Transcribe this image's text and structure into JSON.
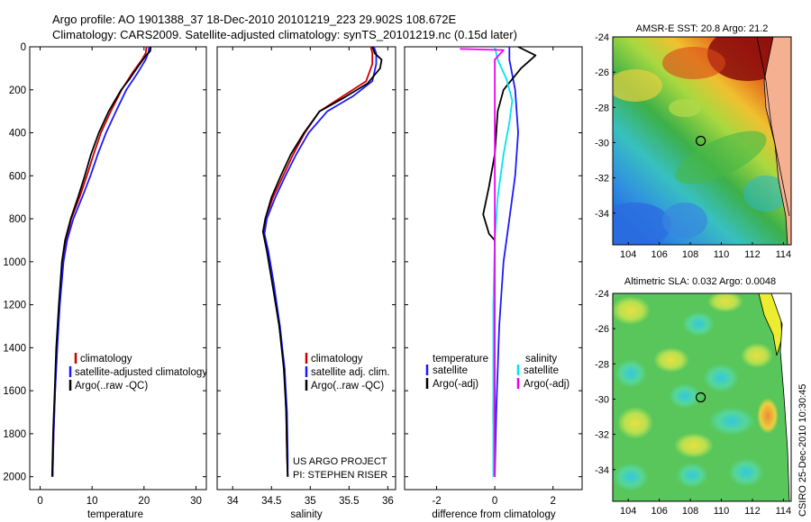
{
  "figure": {
    "title_line1": "Argo profile: AO 1901388_37 18-Dec-2010 20101219_223 29.902S 108.672E",
    "title_line2": "Climatology: CARS2009. Satellite-adjusted climatology: synTS_20101219.nc (0.15d later)",
    "project_label": "US ARGO PROJECT",
    "pi_label": "PI: STEPHEN RISER",
    "side_label": "CSIRO 25-Dec-2010 10:30:45"
  },
  "colors": {
    "climatology": "#cc0000",
    "satellite": "#1a1aff",
    "argo": "#000000",
    "cyan": "#00e5ee",
    "magenta": "#ee00ee"
  },
  "chart_data": [
    {
      "type": "line",
      "id": "temperature",
      "xlabel": "temperature",
      "xlim": [
        -2,
        32
      ],
      "ylim": [
        2060,
        0
      ],
      "x_ticks": [
        "0",
        "10",
        "20",
        "30"
      ],
      "y_ticks": [
        "0",
        "200",
        "400",
        "600",
        "800",
        "1000",
        "1200",
        "1400",
        "1600",
        "1800",
        "2000"
      ],
      "legend": [
        "climatology",
        "satellite-adjusted climatology",
        "Argo(..raw -QC)"
      ],
      "series": [
        {
          "name": "climatology",
          "color_key": "climatology",
          "points": [
            [
              20.5,
              0
            ],
            [
              20.3,
              30
            ],
            [
              19.6,
              60
            ],
            [
              17.8,
              120
            ],
            [
              15.7,
              200
            ],
            [
              13.6,
              300
            ],
            [
              11.7,
              400
            ],
            [
              10.3,
              500
            ],
            [
              9,
              600
            ],
            [
              7.6,
              700
            ],
            [
              6,
              800
            ],
            [
              5,
              900
            ],
            [
              4.3,
              1000
            ],
            [
              3.7,
              1200
            ],
            [
              3.2,
              1400
            ],
            [
              2.9,
              1600
            ],
            [
              2.6,
              1800
            ],
            [
              2.4,
              2000
            ]
          ]
        },
        {
          "name": "satellite-adjusted climatology",
          "color_key": "satellite",
          "points": [
            [
              21,
              0
            ],
            [
              20.8,
              30
            ],
            [
              20.3,
              60
            ],
            [
              18.8,
              120
            ],
            [
              16.6,
              200
            ],
            [
              14.6,
              300
            ],
            [
              12.7,
              400
            ],
            [
              11.1,
              500
            ],
            [
              9.7,
              600
            ],
            [
              8.1,
              700
            ],
            [
              6.4,
              800
            ],
            [
              5.2,
              900
            ],
            [
              4.5,
              1000
            ],
            [
              3.8,
              1200
            ],
            [
              3.3,
              1400
            ],
            [
              2.9,
              1600
            ],
            [
              2.6,
              1800
            ],
            [
              2.4,
              2000
            ]
          ]
        },
        {
          "name": "Argo(..raw -QC)",
          "color_key": "argo",
          "points": [
            [
              21.3,
              0
            ],
            [
              21.2,
              20
            ],
            [
              20.4,
              40
            ],
            [
              18.9,
              90
            ],
            [
              17.2,
              150
            ],
            [
              15.6,
              200
            ],
            [
              13.2,
              300
            ],
            [
              11.3,
              400
            ],
            [
              9.8,
              500
            ],
            [
              8.6,
              600
            ],
            [
              7.3,
              700
            ],
            [
              5.9,
              800
            ],
            [
              4.8,
              900
            ],
            [
              4.2,
              1000
            ],
            [
              3.6,
              1200
            ],
            [
              3.1,
              1400
            ],
            [
              2.8,
              1600
            ],
            [
              2.5,
              1800
            ],
            [
              2.3,
              2000
            ]
          ]
        }
      ]
    },
    {
      "type": "line",
      "id": "salinity",
      "xlabel": "salinity",
      "xlim": [
        33.8,
        36.1
      ],
      "ylim": [
        2060,
        0
      ],
      "x_ticks": [
        "34",
        "34.5",
        "35",
        "35.5",
        "36"
      ],
      "legend": [
        "climatology",
        "satellite adj. clim.",
        "Argo(..raw -QC)"
      ],
      "series": [
        {
          "name": "climatology",
          "color_key": "climatology",
          "points": [
            [
              35.78,
              0
            ],
            [
              35.8,
              30
            ],
            [
              35.8,
              80
            ],
            [
              35.72,
              160
            ],
            [
              35.42,
              230
            ],
            [
              35.12,
              300
            ],
            [
              34.93,
              400
            ],
            [
              34.78,
              500
            ],
            [
              34.65,
              600
            ],
            [
              34.52,
              700
            ],
            [
              34.42,
              800
            ],
            [
              34.4,
              870
            ],
            [
              34.45,
              950
            ],
            [
              34.52,
              1100
            ],
            [
              34.6,
              1300
            ],
            [
              34.67,
              1500
            ],
            [
              34.69,
              1700
            ],
            [
              34.7,
              1900
            ],
            [
              34.71,
              2000
            ]
          ]
        },
        {
          "name": "satellite adj. clim.",
          "color_key": "satellite",
          "points": [
            [
              35.82,
              0
            ],
            [
              35.85,
              30
            ],
            [
              35.85,
              80
            ],
            [
              35.8,
              160
            ],
            [
              35.55,
              230
            ],
            [
              35.22,
              300
            ],
            [
              34.98,
              400
            ],
            [
              34.82,
              500
            ],
            [
              34.68,
              600
            ],
            [
              34.55,
              700
            ],
            [
              34.44,
              800
            ],
            [
              34.41,
              870
            ],
            [
              34.46,
              950
            ],
            [
              34.53,
              1100
            ],
            [
              34.61,
              1300
            ],
            [
              34.67,
              1500
            ],
            [
              34.7,
              1700
            ],
            [
              34.71,
              1900
            ],
            [
              34.71,
              2000
            ]
          ]
        },
        {
          "name": "Argo(..raw -QC)",
          "color_key": "argo",
          "points": [
            [
              35.8,
              0
            ],
            [
              35.83,
              30
            ],
            [
              35.92,
              60
            ],
            [
              35.9,
              100
            ],
            [
              35.74,
              170
            ],
            [
              35.42,
              240
            ],
            [
              35.12,
              300
            ],
            [
              34.92,
              400
            ],
            [
              34.75,
              500
            ],
            [
              34.62,
              600
            ],
            [
              34.5,
              700
            ],
            [
              34.42,
              800
            ],
            [
              34.39,
              860
            ],
            [
              34.44,
              950
            ],
            [
              34.51,
              1100
            ],
            [
              34.6,
              1300
            ],
            [
              34.66,
              1500
            ],
            [
              34.69,
              1700
            ],
            [
              34.7,
              1900
            ],
            [
              34.71,
              2000
            ]
          ]
        }
      ]
    },
    {
      "type": "line",
      "id": "difference",
      "xlabel": "difference from climatology",
      "xlim": [
        -3.1,
        3
      ],
      "ylim": [
        2060,
        0
      ],
      "x_ticks": [
        "-2",
        "0",
        "2"
      ],
      "legend_left_title": "temperature",
      "legend_right_title": "salinity",
      "legend": [
        "satellite",
        "Argo(-adj)",
        "satellite",
        "Argo(-adj)"
      ],
      "series": [
        {
          "name": "satellite (temperature)",
          "color_key": "satellite",
          "points": [
            [
              0.5,
              0
            ],
            [
              0.5,
              60
            ],
            [
              0.7,
              200
            ],
            [
              0.8,
              400
            ],
            [
              0.7,
              600
            ],
            [
              0.5,
              800
            ],
            [
              0.3,
              1000
            ],
            [
              0.15,
              1300
            ],
            [
              0.05,
              1700
            ],
            [
              0,
              2000
            ]
          ]
        },
        {
          "name": "Argo(-adj) (temperature)",
          "color_key": "argo",
          "points": [
            [
              0.8,
              0
            ],
            [
              1.4,
              40
            ],
            [
              0.9,
              100
            ],
            [
              0.3,
              200
            ],
            [
              0.1,
              300
            ],
            [
              0,
              500
            ],
            [
              -0.2,
              650
            ],
            [
              -0.4,
              780
            ],
            [
              -0.2,
              870
            ],
            [
              0,
              900
            ],
            [
              0,
              1100
            ],
            [
              0,
              1400
            ],
            [
              -0.05,
              1700
            ],
            [
              0,
              2000
            ]
          ]
        },
        {
          "name": "satellite (salinity)",
          "color_key": "cyan",
          "points": [
            [
              0,
              0
            ],
            [
              0.1,
              60
            ],
            [
              0.4,
              150
            ],
            [
              0.6,
              250
            ],
            [
              0.5,
              350
            ],
            [
              0.3,
              500
            ],
            [
              0.1,
              700
            ],
            [
              0,
              900
            ],
            [
              -0.05,
              1200
            ],
            [
              -0.05,
              1600
            ],
            [
              -0.05,
              2000
            ]
          ]
        },
        {
          "name": "Argo(-adj) (salinity)",
          "color_key": "magenta",
          "points": [
            [
              -1.2,
              10
            ],
            [
              0.3,
              15
            ],
            [
              0,
              60
            ],
            [
              0,
              200
            ],
            [
              0,
              400
            ],
            [
              0,
              800
            ],
            [
              0,
              1200
            ],
            [
              0,
              1600
            ],
            [
              0,
              2000
            ]
          ]
        }
      ]
    },
    {
      "type": "heatmap",
      "id": "sst_map",
      "title": "AMSR-E SST: 20.8 Argo: 21.2",
      "xlim": [
        103,
        114.5
      ],
      "ylim": [
        -35.8,
        -24
      ],
      "x_ticks": [
        "104",
        "106",
        "108",
        "110",
        "112",
        "114"
      ],
      "y_ticks": [
        "-24",
        "-26",
        "-28",
        "-30",
        "-32",
        "-34"
      ],
      "marker": {
        "lon": 108.67,
        "lat": -29.9
      }
    },
    {
      "type": "heatmap",
      "id": "sla_map",
      "title": "Altimetric SLA: 0.032 Argo: 0.0048",
      "xlim": [
        103,
        114.5
      ],
      "ylim": [
        -35.8,
        -24
      ],
      "x_ticks": [
        "104",
        "106",
        "108",
        "110",
        "112",
        "114"
      ],
      "y_ticks": [
        "-24",
        "-26",
        "-28",
        "-30",
        "-32",
        "-34"
      ],
      "marker": {
        "lon": 108.67,
        "lat": -29.9
      }
    }
  ]
}
